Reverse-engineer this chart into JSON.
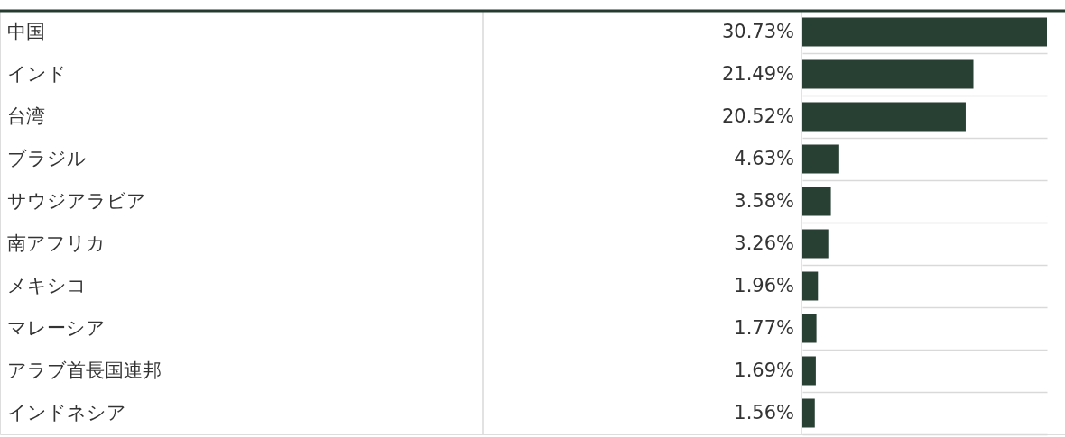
{
  "chart_data": {
    "type": "bar",
    "orientation": "horizontal",
    "categories": [
      "中国",
      "インド",
      "台湾",
      "ブラジル",
      "サウジアラビア",
      "南アフリカ",
      "メキシコ",
      "マレーシア",
      "アラブ首長国連邦",
      "インドネシア"
    ],
    "values": [
      30.73,
      21.49,
      20.52,
      4.63,
      3.58,
      3.26,
      1.96,
      1.77,
      1.69,
      1.56
    ],
    "value_labels": [
      "30.73%",
      "21.49%",
      "20.52%",
      "4.63%",
      "3.58%",
      "3.26%",
      "1.96%",
      "1.77%",
      "1.69%",
      "1.56%"
    ],
    "color": "#283f33",
    "grid": true
  }
}
